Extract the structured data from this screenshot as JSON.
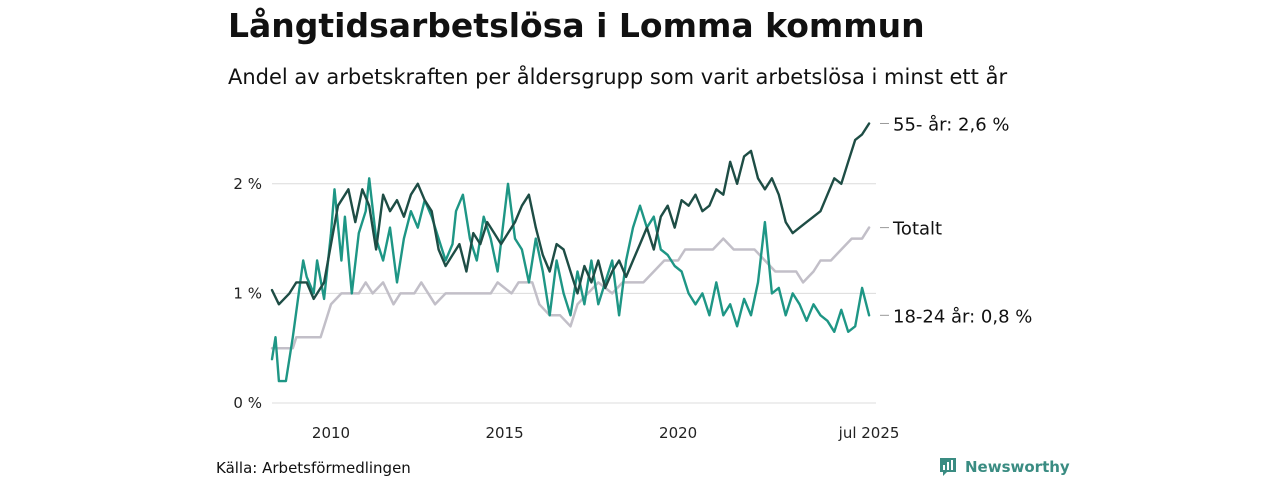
{
  "title": "Långtidsarbetslösa i Lomma kommun",
  "subtitle": "Andel av arbetskraften per åldersgrupp som varit arbetslösa i minst ett år",
  "source": "Källa: Arbetsförmedlingen",
  "brand": "Newsworthy",
  "colors": {
    "series_55": "#1e4d45",
    "series_total": "#c2bfc8",
    "series_young": "#1e9685",
    "grid": "#dcdcdc",
    "brand": "#3a8c82"
  },
  "chart_data": {
    "type": "line",
    "x_unit": "year",
    "xlim": [
      2008.3,
      2025.7
    ],
    "ylim": [
      0,
      2.6
    ],
    "yticks": [
      0,
      1,
      2
    ],
    "ytick_labels": [
      "0 %",
      "1 %",
      "2 %"
    ],
    "xticks": [
      2010,
      2015,
      2020,
      2025.5
    ],
    "xtick_labels": [
      "2010",
      "2015",
      "2020",
      "jul 2025"
    ],
    "grid": true,
    "legend": "direct labels at line ends",
    "series": [
      {
        "key": "series_55",
        "end_label": "55- år: 2,6 %",
        "points": [
          [
            2008.3,
            1.03
          ],
          [
            2008.5,
            0.9
          ],
          [
            2008.8,
            1.0
          ],
          [
            2009.0,
            1.1
          ],
          [
            2009.3,
            1.1
          ],
          [
            2009.5,
            0.95
          ],
          [
            2009.8,
            1.1
          ],
          [
            2010.0,
            1.45
          ],
          [
            2010.2,
            1.8
          ],
          [
            2010.5,
            1.95
          ],
          [
            2010.7,
            1.65
          ],
          [
            2010.9,
            1.95
          ],
          [
            2011.1,
            1.8
          ],
          [
            2011.3,
            1.4
          ],
          [
            2011.5,
            1.9
          ],
          [
            2011.7,
            1.75
          ],
          [
            2011.9,
            1.85
          ],
          [
            2012.1,
            1.7
          ],
          [
            2012.3,
            1.9
          ],
          [
            2012.5,
            2.0
          ],
          [
            2012.7,
            1.85
          ],
          [
            2012.9,
            1.75
          ],
          [
            2013.1,
            1.4
          ],
          [
            2013.3,
            1.25
          ],
          [
            2013.5,
            1.35
          ],
          [
            2013.7,
            1.45
          ],
          [
            2013.9,
            1.2
          ],
          [
            2014.1,
            1.55
          ],
          [
            2014.3,
            1.45
          ],
          [
            2014.5,
            1.65
          ],
          [
            2014.7,
            1.55
          ],
          [
            2014.9,
            1.45
          ],
          [
            2015.1,
            1.55
          ],
          [
            2015.3,
            1.65
          ],
          [
            2015.5,
            1.8
          ],
          [
            2015.7,
            1.9
          ],
          [
            2015.9,
            1.6
          ],
          [
            2016.1,
            1.35
          ],
          [
            2016.3,
            1.2
          ],
          [
            2016.5,
            1.45
          ],
          [
            2016.7,
            1.4
          ],
          [
            2016.9,
            1.2
          ],
          [
            2017.1,
            1.0
          ],
          [
            2017.3,
            1.25
          ],
          [
            2017.5,
            1.1
          ],
          [
            2017.7,
            1.3
          ],
          [
            2017.9,
            1.05
          ],
          [
            2018.1,
            1.2
          ],
          [
            2018.3,
            1.3
          ],
          [
            2018.5,
            1.15
          ],
          [
            2018.7,
            1.3
          ],
          [
            2018.9,
            1.45
          ],
          [
            2019.1,
            1.6
          ],
          [
            2019.3,
            1.4
          ],
          [
            2019.5,
            1.7
          ],
          [
            2019.7,
            1.8
          ],
          [
            2019.9,
            1.6
          ],
          [
            2020.1,
            1.85
          ],
          [
            2020.3,
            1.8
          ],
          [
            2020.5,
            1.9
          ],
          [
            2020.7,
            1.75
          ],
          [
            2020.9,
            1.8
          ],
          [
            2021.1,
            1.95
          ],
          [
            2021.3,
            1.9
          ],
          [
            2021.5,
            2.2
          ],
          [
            2021.7,
            2.0
          ],
          [
            2021.9,
            2.25
          ],
          [
            2022.1,
            2.3
          ],
          [
            2022.3,
            2.05
          ],
          [
            2022.5,
            1.95
          ],
          [
            2022.7,
            2.05
          ],
          [
            2022.9,
            1.9
          ],
          [
            2023.1,
            1.65
          ],
          [
            2023.3,
            1.55
          ],
          [
            2023.5,
            1.6
          ],
          [
            2023.7,
            1.65
          ],
          [
            2023.9,
            1.7
          ],
          [
            2024.1,
            1.75
          ],
          [
            2024.3,
            1.9
          ],
          [
            2024.5,
            2.05
          ],
          [
            2024.7,
            2.0
          ],
          [
            2024.9,
            2.2
          ],
          [
            2025.1,
            2.4
          ],
          [
            2025.3,
            2.45
          ],
          [
            2025.5,
            2.55
          ]
        ]
      },
      {
        "key": "series_total",
        "end_label": "Totalt",
        "points": [
          [
            2008.3,
            0.5
          ],
          [
            2008.9,
            0.5
          ],
          [
            2009.0,
            0.6
          ],
          [
            2009.7,
            0.6
          ],
          [
            2009.8,
            0.7
          ],
          [
            2010.0,
            0.9
          ],
          [
            2010.3,
            1.0
          ],
          [
            2010.8,
            1.0
          ],
          [
            2011.0,
            1.1
          ],
          [
            2011.2,
            1.0
          ],
          [
            2011.5,
            1.1
          ],
          [
            2011.8,
            0.9
          ],
          [
            2012.0,
            1.0
          ],
          [
            2012.4,
            1.0
          ],
          [
            2012.6,
            1.1
          ],
          [
            2013.0,
            0.9
          ],
          [
            2013.3,
            1.0
          ],
          [
            2014.0,
            1.0
          ],
          [
            2014.6,
            1.0
          ],
          [
            2014.8,
            1.1
          ],
          [
            2015.2,
            1.0
          ],
          [
            2015.4,
            1.1
          ],
          [
            2015.8,
            1.1
          ],
          [
            2016.0,
            0.9
          ],
          [
            2016.3,
            0.8
          ],
          [
            2016.6,
            0.8
          ],
          [
            2016.9,
            0.7
          ],
          [
            2017.1,
            0.9
          ],
          [
            2017.4,
            1.0
          ],
          [
            2017.7,
            1.1
          ],
          [
            2018.1,
            1.0
          ],
          [
            2018.4,
            1.1
          ],
          [
            2019.0,
            1.1
          ],
          [
            2019.3,
            1.2
          ],
          [
            2019.6,
            1.3
          ],
          [
            2020.0,
            1.3
          ],
          [
            2020.2,
            1.4
          ],
          [
            2021.0,
            1.4
          ],
          [
            2021.3,
            1.5
          ],
          [
            2021.6,
            1.4
          ],
          [
            2022.2,
            1.4
          ],
          [
            2022.5,
            1.3
          ],
          [
            2022.8,
            1.2
          ],
          [
            2023.1,
            1.2
          ],
          [
            2023.4,
            1.2
          ],
          [
            2023.6,
            1.1
          ],
          [
            2023.9,
            1.2
          ],
          [
            2024.1,
            1.3
          ],
          [
            2024.4,
            1.3
          ],
          [
            2024.7,
            1.4
          ],
          [
            2025.0,
            1.5
          ],
          [
            2025.3,
            1.5
          ],
          [
            2025.5,
            1.6
          ]
        ]
      },
      {
        "key": "series_young",
        "end_label": "18-24 år: 0,8 %",
        "points": [
          [
            2008.3,
            0.4
          ],
          [
            2008.4,
            0.6
          ],
          [
            2008.5,
            0.2
          ],
          [
            2008.7,
            0.2
          ],
          [
            2008.9,
            0.6
          ],
          [
            2009.2,
            1.3
          ],
          [
            2009.3,
            1.15
          ],
          [
            2009.5,
            1.0
          ],
          [
            2009.6,
            1.3
          ],
          [
            2009.8,
            0.95
          ],
          [
            2010.0,
            1.55
          ],
          [
            2010.1,
            1.95
          ],
          [
            2010.3,
            1.3
          ],
          [
            2010.4,
            1.7
          ],
          [
            2010.6,
            1.0
          ],
          [
            2010.8,
            1.55
          ],
          [
            2011.0,
            1.75
          ],
          [
            2011.1,
            2.05
          ],
          [
            2011.3,
            1.5
          ],
          [
            2011.5,
            1.3
          ],
          [
            2011.7,
            1.6
          ],
          [
            2011.9,
            1.1
          ],
          [
            2012.1,
            1.5
          ],
          [
            2012.3,
            1.75
          ],
          [
            2012.5,
            1.6
          ],
          [
            2012.7,
            1.85
          ],
          [
            2012.9,
            1.7
          ],
          [
            2013.1,
            1.5
          ],
          [
            2013.3,
            1.3
          ],
          [
            2013.5,
            1.45
          ],
          [
            2013.6,
            1.75
          ],
          [
            2013.8,
            1.9
          ],
          [
            2014.0,
            1.5
          ],
          [
            2014.2,
            1.3
          ],
          [
            2014.4,
            1.7
          ],
          [
            2014.6,
            1.5
          ],
          [
            2014.8,
            1.2
          ],
          [
            2015.1,
            2.0
          ],
          [
            2015.3,
            1.5
          ],
          [
            2015.5,
            1.4
          ],
          [
            2015.7,
            1.1
          ],
          [
            2015.9,
            1.5
          ],
          [
            2016.1,
            1.2
          ],
          [
            2016.3,
            0.8
          ],
          [
            2016.5,
            1.3
          ],
          [
            2016.7,
            1.0
          ],
          [
            2016.9,
            0.8
          ],
          [
            2017.1,
            1.2
          ],
          [
            2017.3,
            0.9
          ],
          [
            2017.5,
            1.3
          ],
          [
            2017.7,
            0.9
          ],
          [
            2017.9,
            1.1
          ],
          [
            2018.1,
            1.3
          ],
          [
            2018.3,
            0.8
          ],
          [
            2018.5,
            1.3
          ],
          [
            2018.7,
            1.6
          ],
          [
            2018.9,
            1.8
          ],
          [
            2019.1,
            1.6
          ],
          [
            2019.3,
            1.7
          ],
          [
            2019.5,
            1.4
          ],
          [
            2019.7,
            1.35
          ],
          [
            2019.9,
            1.25
          ],
          [
            2020.1,
            1.2
          ],
          [
            2020.3,
            1.0
          ],
          [
            2020.5,
            0.9
          ],
          [
            2020.7,
            1.0
          ],
          [
            2020.9,
            0.8
          ],
          [
            2021.1,
            1.1
          ],
          [
            2021.3,
            0.8
          ],
          [
            2021.5,
            0.9
          ],
          [
            2021.7,
            0.7
          ],
          [
            2021.9,
            0.95
          ],
          [
            2022.1,
            0.8
          ],
          [
            2022.3,
            1.1
          ],
          [
            2022.5,
            1.65
          ],
          [
            2022.7,
            1.0
          ],
          [
            2022.9,
            1.05
          ],
          [
            2023.1,
            0.8
          ],
          [
            2023.3,
            1.0
          ],
          [
            2023.5,
            0.9
          ],
          [
            2023.7,
            0.75
          ],
          [
            2023.9,
            0.9
          ],
          [
            2024.1,
            0.8
          ],
          [
            2024.3,
            0.75
          ],
          [
            2024.5,
            0.65
          ],
          [
            2024.7,
            0.85
          ],
          [
            2024.9,
            0.65
          ],
          [
            2025.1,
            0.7
          ],
          [
            2025.3,
            1.05
          ],
          [
            2025.5,
            0.8
          ]
        ]
      }
    ]
  }
}
